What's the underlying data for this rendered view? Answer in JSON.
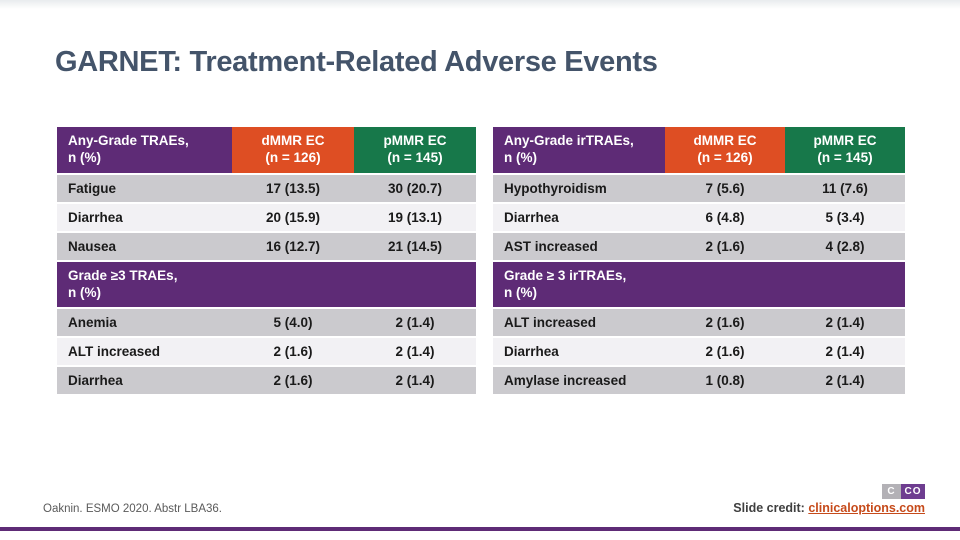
{
  "slide": {
    "title": "GARNET: Treatment-Related Adverse Events"
  },
  "colors": {
    "purple": "#5E2B76",
    "orange": "#DE4E23",
    "green": "#17784A",
    "row_gray": "#CBCACE",
    "row_light": "#F2F1F4",
    "title_text": "#44546A",
    "link": "#C64A1A"
  },
  "tables": {
    "left": {
      "header": {
        "label": "Any-Grade TRAEs,\nn (%)",
        "col1": "dMMR EC\n(n = 126)",
        "col2": "pMMR EC\n(n = 145)"
      },
      "rows": [
        {
          "label": "Fatigue",
          "v1": "17 (13.5)",
          "v2": "30 (20.7)"
        },
        {
          "label": "Diarrhea",
          "v1": "20 (15.9)",
          "v2": "19 (13.1)"
        },
        {
          "label": "Nausea",
          "v1": "16 (12.7)",
          "v2": "21 (14.5)"
        }
      ],
      "section": "Grade ≥3 TRAEs,\nn (%)",
      "rows2": [
        {
          "label": "Anemia",
          "v1": "5 (4.0)",
          "v2": "2 (1.4)"
        },
        {
          "label": "ALT increased",
          "v1": "2 (1.6)",
          "v2": "2 (1.4)"
        },
        {
          "label": "Diarrhea",
          "v1": "2 (1.6)",
          "v2": "2 (1.4)"
        }
      ]
    },
    "right": {
      "header": {
        "label": "Any-Grade irTRAEs,\nn (%)",
        "col1": "dMMR EC\n(n = 126)",
        "col2": "pMMR EC\n(n = 145)"
      },
      "rows": [
        {
          "label": "Hypothyroidism",
          "v1": "7 (5.6)",
          "v2": "11 (7.6)"
        },
        {
          "label": "Diarrhea",
          "v1": "6 (4.8)",
          "v2": "5 (3.4)"
        },
        {
          "label": "AST increased",
          "v1": "2 (1.6)",
          "v2": "4 (2.8)"
        }
      ],
      "section": "Grade ≥ 3 irTRAEs,\nn (%)",
      "rows2": [
        {
          "label": "ALT increased",
          "v1": "2 (1.6)",
          "v2": "2 (1.4)"
        },
        {
          "label": "Diarrhea",
          "v1": "2 (1.6)",
          "v2": "2 (1.4)"
        },
        {
          "label": "Amylase increased",
          "v1": "1 (0.8)",
          "v2": "2 (1.4)"
        }
      ]
    }
  },
  "footer": {
    "reference": "Oaknin. ESMO 2020. Abstr LBA36.",
    "credit_label": "Slide credit: ",
    "credit_link": "clinicaloptions.com",
    "logo_left": "C",
    "logo_right": "CO"
  }
}
